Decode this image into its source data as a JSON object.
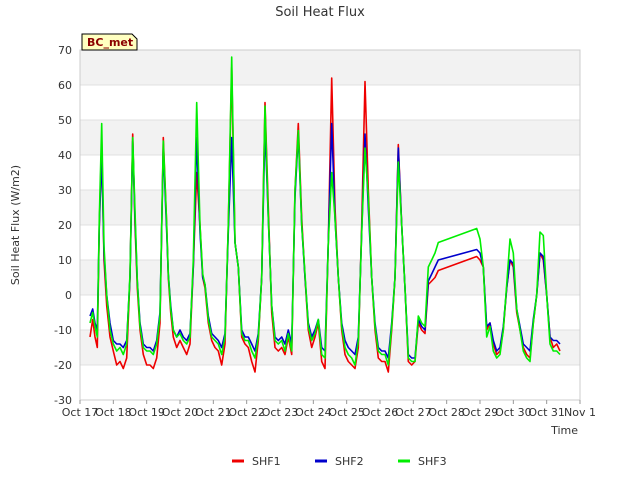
{
  "chart_data": {
    "type": "line",
    "title": "Soil Heat Flux",
    "xlabel": "Time",
    "ylabel": "Soil Heat Flux (W/m2)",
    "site_label": "BC_met",
    "ylim": [
      -30,
      70
    ],
    "yticks": [
      -30,
      -20,
      -10,
      0,
      10,
      20,
      30,
      40,
      50,
      60,
      70
    ],
    "xlim": [
      0,
      15
    ],
    "xticks": [
      {
        "x": 0,
        "label": "Oct 17"
      },
      {
        "x": 1,
        "label": "Oct 18"
      },
      {
        "x": 2,
        "label": "Oct 19"
      },
      {
        "x": 3,
        "label": "Oct 20"
      },
      {
        "x": 4,
        "label": "Oct 21"
      },
      {
        "x": 5,
        "label": "Oct 22"
      },
      {
        "x": 6,
        "label": "Oct 23"
      },
      {
        "x": 7,
        "label": "Oct 24"
      },
      {
        "x": 8,
        "label": "Oct 25"
      },
      {
        "x": 9,
        "label": "Oct 26"
      },
      {
        "x": 10,
        "label": "Oct 27"
      },
      {
        "x": 11,
        "label": "Oct 28"
      },
      {
        "x": 12,
        "label": "Oct 29"
      },
      {
        "x": 13,
        "label": "Oct 30"
      },
      {
        "x": 14,
        "label": "Oct 31"
      },
      {
        "x": 15,
        "label": "Nov 1"
      }
    ],
    "grid_bands": true,
    "legend_position": "bottom-center",
    "series": [
      {
        "name": "SHF1",
        "color": "#ee0000",
        "x": [
          0.3,
          0.38,
          0.45,
          0.52,
          0.58,
          0.65,
          0.72,
          0.8,
          0.9,
          1.0,
          1.1,
          1.2,
          1.3,
          1.4,
          1.5,
          1.58,
          1.65,
          1.72,
          1.8,
          1.9,
          2.0,
          2.1,
          2.2,
          2.3,
          2.4,
          2.5,
          2.6,
          2.65,
          2.72,
          2.8,
          2.9,
          3.0,
          3.1,
          3.2,
          3.3,
          3.4,
          3.5,
          3.6,
          3.68,
          3.75,
          3.85,
          3.95,
          4.05,
          4.15,
          4.25,
          4.35,
          4.45,
          4.55,
          4.65,
          4.75,
          4.85,
          4.95,
          5.05,
          5.15,
          5.25,
          5.35,
          5.45,
          5.55,
          5.65,
          5.75,
          5.85,
          5.95,
          6.05,
          6.15,
          6.25,
          6.35,
          6.45,
          6.55,
          6.65,
          6.75,
          6.85,
          6.95,
          7.05,
          7.15,
          7.25,
          7.35,
          7.45,
          7.55,
          7.65,
          7.75,
          7.85,
          7.95,
          8.05,
          8.15,
          8.25,
          8.35,
          8.45,
          8.55,
          8.65,
          8.75,
          8.85,
          8.95,
          9.05,
          9.15,
          9.25,
          9.35,
          9.45,
          9.55,
          9.65,
          9.75,
          9.85,
          9.95,
          10.05,
          10.15,
          10.25,
          10.35,
          10.45,
          10.55,
          10.65,
          10.75,
          11.9,
          12.0,
          12.1,
          12.2,
          12.3,
          12.4,
          12.5,
          12.6,
          12.7,
          12.8,
          12.9,
          13.0,
          13.1,
          13.2,
          13.3,
          13.4,
          13.5,
          13.6,
          13.7,
          13.8,
          13.9,
          14.0,
          14.1,
          14.2,
          14.3,
          14.4
        ],
        "values": [
          -12,
          -7,
          -12,
          -15,
          20,
          44,
          10,
          -3,
          -12,
          -16,
          -20,
          -19,
          -21,
          -18,
          5,
          46,
          20,
          2,
          -10,
          -17,
          -20,
          -20,
          -21,
          -18,
          -8,
          45,
          20,
          5,
          -5,
          -12,
          -15,
          -13,
          -15,
          -17,
          -14,
          8,
          35,
          20,
          5,
          2,
          -8,
          -13,
          -15,
          -16,
          -20,
          -14,
          20,
          65,
          15,
          8,
          -12,
          -14,
          -15,
          -19,
          -22,
          -13,
          5,
          55,
          25,
          -5,
          -15,
          -16,
          -15,
          -17,
          -12,
          -17,
          30,
          49,
          22,
          5,
          -10,
          -15,
          -12,
          -8,
          -19,
          -21,
          15,
          62,
          25,
          5,
          -10,
          -17,
          -19,
          -20,
          -21,
          -15,
          20,
          61,
          30,
          5,
          -10,
          -18,
          -19,
          -19,
          -22,
          -10,
          5,
          43,
          20,
          2,
          -19,
          -20,
          -19,
          -8,
          -10,
          -11,
          3,
          4,
          5,
          7,
          11,
          10,
          8,
          -10,
          -8,
          -14,
          -17,
          -16,
          -10,
          2,
          10,
          8,
          -5,
          -10,
          -15,
          -17,
          -18,
          -8,
          0,
          12,
          10,
          0,
          -12,
          -15,
          -14,
          -16
        ]
      },
      {
        "name": "SHF2",
        "color": "#0000cc",
        "x": [
          0.3,
          0.38,
          0.45,
          0.52,
          0.58,
          0.65,
          0.72,
          0.8,
          0.9,
          1.0,
          1.1,
          1.2,
          1.3,
          1.4,
          1.5,
          1.58,
          1.65,
          1.72,
          1.8,
          1.9,
          2.0,
          2.1,
          2.2,
          2.3,
          2.4,
          2.5,
          2.6,
          2.65,
          2.72,
          2.8,
          2.9,
          3.0,
          3.1,
          3.2,
          3.3,
          3.4,
          3.5,
          3.6,
          3.68,
          3.75,
          3.85,
          3.95,
          4.05,
          4.15,
          4.25,
          4.35,
          4.45,
          4.55,
          4.65,
          4.75,
          4.85,
          4.95,
          5.05,
          5.15,
          5.25,
          5.35,
          5.45,
          5.55,
          5.65,
          5.75,
          5.85,
          5.95,
          6.05,
          6.15,
          6.25,
          6.35,
          6.45,
          6.55,
          6.65,
          6.75,
          6.85,
          6.95,
          7.05,
          7.15,
          7.25,
          7.35,
          7.45,
          7.55,
          7.65,
          7.75,
          7.85,
          7.95,
          8.05,
          8.15,
          8.25,
          8.35,
          8.45,
          8.55,
          8.65,
          8.75,
          8.85,
          8.95,
          9.05,
          9.15,
          9.25,
          9.35,
          9.45,
          9.55,
          9.65,
          9.75,
          9.85,
          9.95,
          10.05,
          10.15,
          10.25,
          10.35,
          10.45,
          10.55,
          10.65,
          10.75,
          11.9,
          12.0,
          12.1,
          12.2,
          12.3,
          12.4,
          12.5,
          12.6,
          12.7,
          12.8,
          12.9,
          13.0,
          13.1,
          13.2,
          13.3,
          13.4,
          13.5,
          13.6,
          13.7,
          13.8,
          13.9,
          14.0,
          14.1,
          14.2,
          14.3,
          14.4
        ],
        "values": [
          -6,
          -4,
          -8,
          -10,
          20,
          40,
          12,
          0,
          -8,
          -13,
          -14,
          -14,
          -15,
          -13,
          5,
          44,
          22,
          4,
          -8,
          -14,
          -15,
          -15,
          -16,
          -13,
          -5,
          42,
          18,
          6,
          -3,
          -10,
          -12,
          -10,
          -12,
          -13,
          -11,
          8,
          45,
          18,
          5,
          3,
          -6,
          -11,
          -12,
          -13,
          -15,
          -11,
          18,
          45,
          15,
          8,
          -10,
          -12,
          -12,
          -14,
          -16,
          -11,
          5,
          48,
          22,
          -3,
          -12,
          -13,
          -12,
          -14,
          -10,
          -14,
          28,
          46,
          20,
          5,
          -8,
          -12,
          -10,
          -7,
          -15,
          -16,
          15,
          49,
          22,
          5,
          -8,
          -13,
          -15,
          -16,
          -17,
          -12,
          18,
          46,
          25,
          5,
          -8,
          -15,
          -16,
          -16,
          -18,
          -8,
          5,
          42,
          20,
          2,
          -17,
          -18,
          -18,
          -7,
          -9,
          -10,
          4,
          6,
          8,
          10,
          13,
          12,
          8,
          -9,
          -8,
          -13,
          -16,
          -15,
          -9,
          2,
          10,
          9,
          -4,
          -9,
          -14,
          -15,
          -16,
          -7,
          0,
          12,
          11,
          0,
          -12,
          -13,
          -13,
          -14
        ]
      },
      {
        "name": "SHF3",
        "color": "#00ee00",
        "x": [
          0.3,
          0.38,
          0.45,
          0.52,
          0.58,
          0.65,
          0.72,
          0.8,
          0.9,
          1.0,
          1.1,
          1.2,
          1.3,
          1.4,
          1.5,
          1.58,
          1.65,
          1.72,
          1.8,
          1.9,
          2.0,
          2.1,
          2.2,
          2.3,
          2.4,
          2.5,
          2.6,
          2.65,
          2.72,
          2.8,
          2.9,
          3.0,
          3.1,
          3.2,
          3.3,
          3.4,
          3.5,
          3.6,
          3.68,
          3.75,
          3.85,
          3.95,
          4.05,
          4.15,
          4.25,
          4.35,
          4.45,
          4.55,
          4.65,
          4.75,
          4.85,
          4.95,
          5.05,
          5.15,
          5.25,
          5.35,
          5.45,
          5.55,
          5.65,
          5.75,
          5.85,
          5.95,
          6.05,
          6.15,
          6.25,
          6.35,
          6.45,
          6.55,
          6.65,
          6.75,
          6.85,
          6.95,
          7.05,
          7.15,
          7.25,
          7.35,
          7.45,
          7.55,
          7.65,
          7.75,
          7.85,
          7.95,
          8.05,
          8.15,
          8.25,
          8.35,
          8.45,
          8.55,
          8.65,
          8.75,
          8.85,
          8.95,
          9.05,
          9.15,
          9.25,
          9.35,
          9.45,
          9.55,
          9.65,
          9.75,
          9.85,
          9.95,
          10.05,
          10.15,
          10.25,
          10.35,
          10.45,
          10.55,
          10.65,
          10.75,
          11.9,
          12.0,
          12.1,
          12.2,
          12.3,
          12.4,
          12.5,
          12.6,
          12.7,
          12.8,
          12.9,
          13.0,
          13.1,
          13.2,
          13.3,
          13.4,
          13.5,
          13.6,
          13.7,
          13.8,
          13.9,
          14.0,
          14.1,
          14.2,
          14.3,
          14.4
        ],
        "values": [
          -8,
          -5,
          -9,
          -12,
          22,
          49,
          14,
          0,
          -10,
          -14,
          -16,
          -15,
          -17,
          -14,
          6,
          45,
          24,
          4,
          -9,
          -15,
          -16,
          -16,
          -17,
          -14,
          -6,
          44,
          20,
          6,
          -4,
          -10,
          -12,
          -11,
          -13,
          -14,
          -12,
          10,
          55,
          20,
          6,
          3,
          -7,
          -12,
          -13,
          -14,
          -17,
          -12,
          20,
          68,
          15,
          8,
          -11,
          -13,
          -13,
          -16,
          -18,
          -12,
          5,
          54,
          22,
          -3,
          -13,
          -14,
          -13,
          -16,
          -11,
          -16,
          30,
          47,
          20,
          6,
          -9,
          -13,
          -11,
          -7,
          -17,
          -18,
          15,
          35,
          22,
          5,
          -9,
          -15,
          -17,
          -18,
          -20,
          -13,
          18,
          42,
          28,
          5,
          -9,
          -16,
          -17,
          -17,
          -20,
          -9,
          5,
          38,
          20,
          2,
          -18,
          -19,
          -19,
          -6,
          -8,
          -9,
          8,
          10,
          12,
          15,
          19,
          16,
          8,
          -12,
          -9,
          -16,
          -18,
          -17,
          -10,
          3,
          16,
          12,
          -4,
          -10,
          -16,
          -18,
          -19,
          -8,
          0,
          18,
          17,
          0,
          -14,
          -16,
          -16,
          -17
        ]
      }
    ]
  }
}
